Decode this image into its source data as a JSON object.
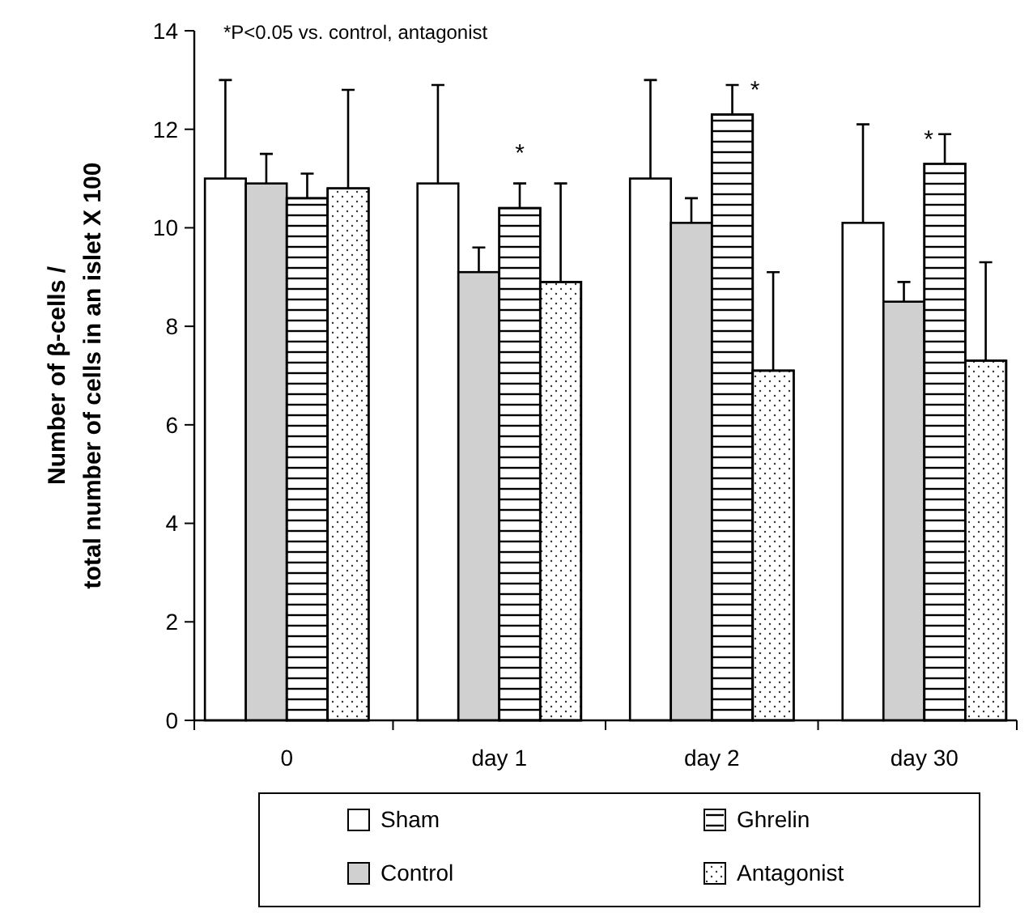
{
  "chart_data": {
    "type": "bar",
    "ylabel": "Number of β-cells /\ntotal number of cells in an islet X 100",
    "categories": [
      "0",
      "day 1",
      "day 2",
      "day 30"
    ],
    "series": [
      {
        "name": "Sham",
        "color": "#ffffff",
        "values": [
          11.0,
          10.9,
          11.0,
          10.1
        ],
        "errors": [
          [
            11.0,
            13.0
          ],
          [
            10.9,
            12.9
          ],
          [
            11.0,
            13.0
          ],
          [
            10.1,
            12.1
          ]
        ]
      },
      {
        "name": "Control",
        "color": "#d0d0d0",
        "values": [
          10.9,
          9.1,
          10.1,
          8.5
        ],
        "errors": [
          [
            10.9,
            11.5
          ],
          [
            9.1,
            9.6
          ],
          [
            10.1,
            10.6
          ],
          [
            8.5,
            8.9
          ]
        ]
      },
      {
        "name": "Ghrelin",
        "color": "#ffffff",
        "values": [
          10.6,
          10.4,
          12.3,
          11.3
        ],
        "errors": [
          [
            10.6,
            11.1
          ],
          [
            10.4,
            10.9
          ],
          [
            12.3,
            12.9
          ],
          [
            11.3,
            11.9
          ]
        ]
      },
      {
        "name": "Antagonist",
        "color": "#ffffff",
        "values": [
          10.8,
          8.9,
          7.1,
          7.3
        ],
        "errors": [
          [
            10.8,
            12.8
          ],
          [
            8.9,
            10.9
          ],
          [
            7.1,
            9.1
          ],
          [
            7.3,
            9.3
          ]
        ]
      }
    ],
    "ylim": [
      0,
      14
    ],
    "yticks": [
      0,
      2,
      4,
      6,
      8,
      10,
      12,
      14
    ],
    "grid": false,
    "legend": "bottom",
    "annotations": [
      "*P<0.05 vs. control, antagonist",
      "*",
      "*",
      "*"
    ]
  }
}
